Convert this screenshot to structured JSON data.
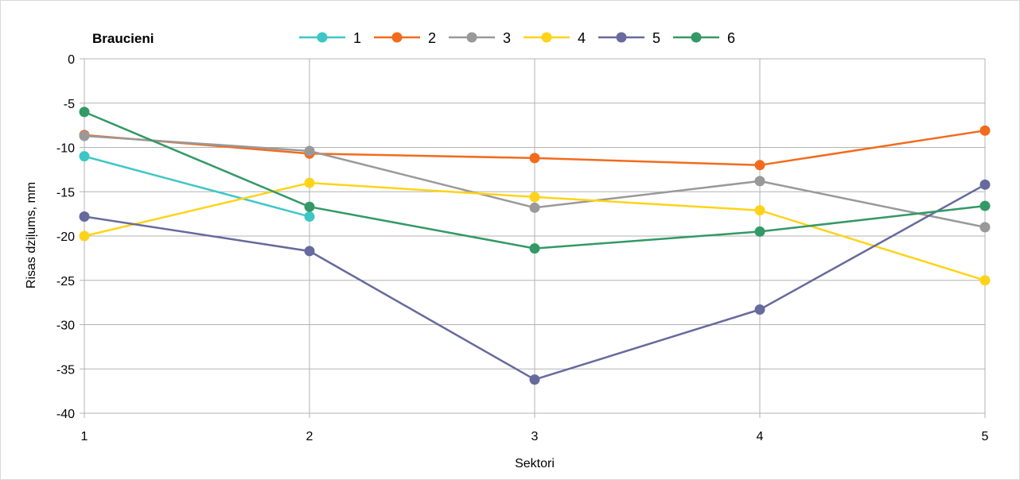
{
  "chart_data": {
    "type": "line",
    "legend_title": "Braucieni",
    "legend_placement": "top",
    "xlabel": "Sektori",
    "ylabel": "Risas dziļums, mm",
    "x": [
      1,
      2,
      3,
      4,
      5
    ],
    "ylim": [
      -40,
      0
    ],
    "yticks": [
      0,
      -5,
      -10,
      -15,
      -20,
      -25,
      -30,
      -35,
      -40
    ],
    "grid": true,
    "series": [
      {
        "name": "1",
        "color": "#3ec6c6",
        "values": [
          -11.0,
          -17.8,
          null,
          null,
          null
        ]
      },
      {
        "name": "2",
        "color": "#f26b1d",
        "values": [
          -8.6,
          -10.7,
          -11.2,
          -12.0,
          -8.1
        ]
      },
      {
        "name": "3",
        "color": "#999999",
        "values": [
          -8.7,
          -10.4,
          -16.8,
          -13.8,
          -19.0
        ]
      },
      {
        "name": "4",
        "color": "#ffd319",
        "values": [
          -20.0,
          -14.0,
          -15.6,
          -17.1,
          -25.0
        ]
      },
      {
        "name": "5",
        "color": "#676a9c",
        "values": [
          -17.8,
          -21.7,
          -36.2,
          -28.3,
          -14.2
        ]
      },
      {
        "name": "6",
        "color": "#339966",
        "values": [
          -6.0,
          -16.7,
          -21.4,
          -19.5,
          -16.6
        ]
      }
    ]
  }
}
